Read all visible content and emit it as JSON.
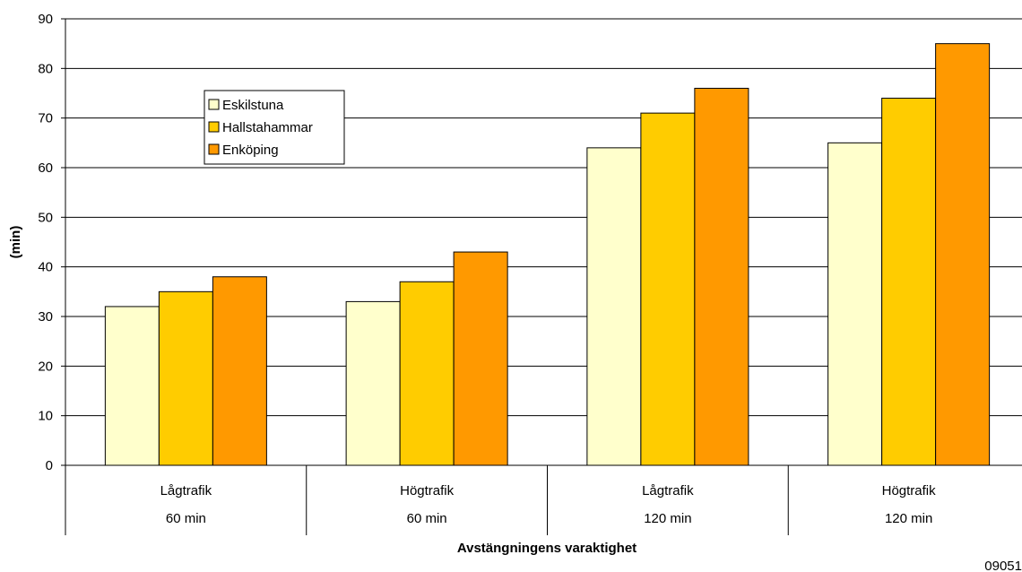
{
  "chart_data": {
    "type": "bar",
    "ylabel": "(min)",
    "xlabel": "Avstängningens varaktighet",
    "ylim": [
      0,
      90
    ],
    "ytick_step": 10,
    "grid": true,
    "legend_placement": "top-left",
    "categories": [
      {
        "line1": "Lågtrafik",
        "line2": "60 min"
      },
      {
        "line1": "Högtrafik",
        "line2": "60 min"
      },
      {
        "line1": "Lågtrafik",
        "line2": "120 min"
      },
      {
        "line1": "Högtrafik",
        "line2": "120 min"
      }
    ],
    "series": [
      {
        "name": "Eskilstuna",
        "color": "#FFFFCC",
        "values": [
          32,
          33,
          64,
          65
        ]
      },
      {
        "name": "Hallstahammar",
        "color": "#FFCC00",
        "values": [
          35,
          37,
          71,
          74
        ]
      },
      {
        "name": "Enköping",
        "color": "#FF9900",
        "values": [
          38,
          43,
          76,
          85
        ]
      }
    ]
  },
  "footer_code": "09051"
}
